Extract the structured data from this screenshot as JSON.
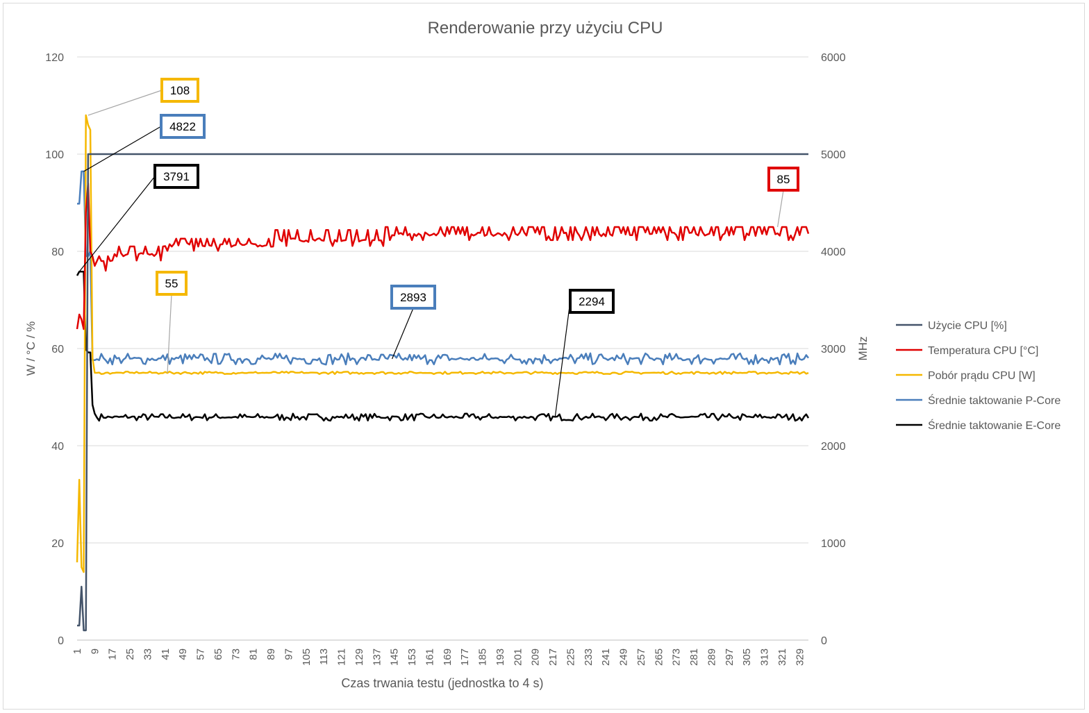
{
  "chart_data": {
    "type": "line",
    "title": "Renderowanie przy użyciu CPU",
    "xlabel": "Czas trwania testu (jednostka to 4 s)",
    "ylabel_left": "W / °C / %",
    "ylabel_right": "MHz",
    "ylim_left": [
      0,
      120
    ],
    "ylim_right": [
      0,
      6000
    ],
    "yticks_left": [
      "0",
      "20",
      "40",
      "60",
      "80",
      "100",
      "120"
    ],
    "yticks_right": [
      "0",
      "1000",
      "2000",
      "3000",
      "4000",
      "5000",
      "6000"
    ],
    "x_count": 333,
    "x_ticks": [
      "1",
      "9",
      "17",
      "25",
      "33",
      "41",
      "49",
      "57",
      "65",
      "73",
      "81",
      "89",
      "97",
      "105",
      "113",
      "121",
      "129",
      "137",
      "145",
      "153",
      "161",
      "169",
      "177",
      "185",
      "193",
      "201",
      "209",
      "217",
      "225",
      "233",
      "241",
      "249",
      "257",
      "265",
      "273",
      "281",
      "289",
      "297",
      "305",
      "313",
      "321",
      "329"
    ],
    "grid": true,
    "legend_position": "right",
    "series": [
      {
        "name": "Użycie CPU [%]",
        "axis": "left",
        "color": "#44546a",
        "start_values": [
          3,
          3,
          11,
          2,
          2,
          100,
          100
        ],
        "steady": 100,
        "steady_jitter": 0
      },
      {
        "name": "Temperatura CPU [°C]",
        "axis": "left",
        "color": "#e00000",
        "start_values": [
          64,
          67,
          66,
          64,
          88,
          94,
          80,
          79,
          77,
          78,
          79,
          78,
          78,
          76,
          79,
          78
        ],
        "steady_segments": [
          {
            "until": 40,
            "base": 79.3,
            "alt": 81
          },
          {
            "until": 90,
            "base": 81.3,
            "alt": 82.6
          },
          {
            "until": 140,
            "base": 82.3,
            "alt": 84.4
          },
          {
            "until": 333,
            "base": 83.5,
            "alt": 85
          }
        ],
        "steady_jitter": 1.2
      },
      {
        "name": "Pobór prądu CPU [W]",
        "axis": "left",
        "color": "#f5b800",
        "start_values": [
          16,
          33,
          15,
          14,
          108,
          106,
          105,
          58,
          55,
          55
        ],
        "steady": 55,
        "steady_jitter": 0.2
      },
      {
        "name": "Średnie taktowanie P-Core",
        "axis": "right",
        "color": "#4a7ebb",
        "start_values": [
          4490,
          4490,
          4822,
          4822,
          3950,
          3950,
          4000,
          2880,
          2880,
          2890
        ],
        "steady": 2893,
        "steady_jitter": 45
      },
      {
        "name": "Średnie taktowanie E-Core",
        "axis": "right",
        "color": "#000000",
        "start_values": [
          3750,
          3791,
          3791,
          3791,
          2990,
          2960,
          2960,
          2420,
          2330,
          2290
        ],
        "steady": 2294,
        "steady_jitter": 28
      }
    ],
    "annotations": [
      {
        "label": "108",
        "series": "Pobór prądu CPU [W]",
        "x_index": 5,
        "color": "#f5b800",
        "leader": "#a6a6a6"
      },
      {
        "label": "4822",
        "series": "Średnie taktowanie P-Core",
        "x_index": 3,
        "color": "#4a7ebb",
        "leader": "#000000"
      },
      {
        "label": "3791",
        "series": "Średnie taktowanie E-Core",
        "x_index": 1,
        "color": "#000000",
        "leader": "#000000"
      },
      {
        "label": "85",
        "series": "Temperatura CPU [°C]",
        "x_index": 318,
        "color": "#e00000",
        "leader": "#a6a6a6"
      },
      {
        "label": "55",
        "series": "Pobór prądu CPU [W]",
        "x_index": 41,
        "color": "#f5b800",
        "leader": "#a6a6a6"
      },
      {
        "label": "2893",
        "series": "Średnie taktowanie P-Core",
        "x_index": 143,
        "color": "#4a7ebb",
        "leader": "#000000"
      },
      {
        "label": "2294",
        "series": "Średnie taktowanie E-Core",
        "x_index": 217,
        "color": "#000000",
        "leader": "#000000"
      }
    ]
  }
}
